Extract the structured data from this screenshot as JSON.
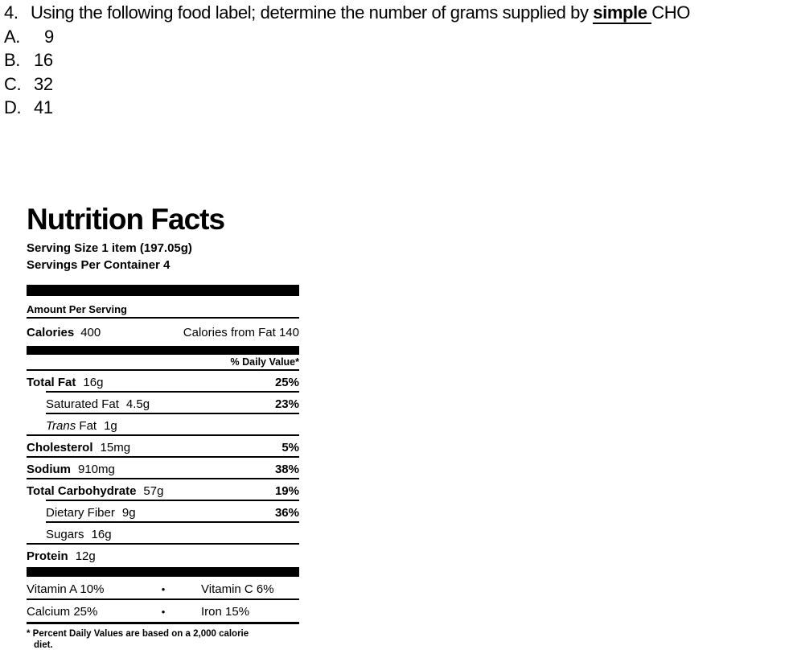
{
  "question": {
    "number": "4.",
    "text_before": "Using the following food label; determine the number of grams supplied by ",
    "emphasis": "simple ",
    "text_after": "CHO",
    "options": [
      {
        "letter": "A.",
        "value": "9"
      },
      {
        "letter": "B.",
        "value": "16"
      },
      {
        "letter": "C.",
        "value": "32"
      },
      {
        "letter": "D.",
        "value": "41"
      }
    ]
  },
  "nutrition_label": {
    "title": "Nutrition Facts",
    "serving_size": "Serving Size 1 item (197.05g)",
    "servings_per_container": "Servings Per Container 4",
    "amount_per_serving": "Amount Per Serving",
    "calories": {
      "label": "Calories",
      "value": "400",
      "from_fat": "Calories from Fat 140"
    },
    "daily_value_header": "% Daily Value*",
    "nutrients": [
      {
        "name": "Total Fat",
        "amount": "16g",
        "daily_value": "25%"
      },
      {
        "name": "Saturated Fat",
        "amount": "4.5g",
        "daily_value": "23%"
      },
      {
        "name_italic": "Trans",
        "name_rest": " Fat",
        "amount": "1g",
        "daily_value": ""
      },
      {
        "name": "Cholesterol",
        "amount": "15mg",
        "daily_value": "5%"
      },
      {
        "name": "Sodium",
        "amount": "910mg",
        "daily_value": "38%"
      },
      {
        "name": "Total Carbohydrate",
        "amount": "57g",
        "daily_value": "19%"
      },
      {
        "name": "Dietary Fiber",
        "amount": "9g",
        "daily_value": "36%"
      },
      {
        "name": "Sugars",
        "amount": "16g",
        "daily_value": ""
      },
      {
        "name": "Protein",
        "amount": "12g",
        "daily_value": ""
      }
    ],
    "micronutrients": {
      "bullet": "•",
      "rows": [
        {
          "left": "Vitamin A 10%",
          "right": "Vitamin C 6%"
        },
        {
          "left": "Calcium 25%",
          "right": "Iron 15%"
        }
      ]
    },
    "footnote_line1": "* Percent Daily Values are based on a 2,000 calorie",
    "footnote_line2": "diet."
  }
}
